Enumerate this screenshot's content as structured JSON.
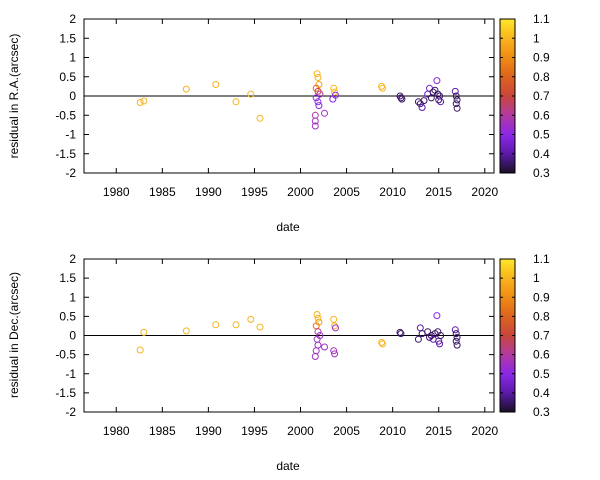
{
  "chart_data": [
    {
      "type": "scatter",
      "xlabel": "date",
      "ylabel": "residual in R.A.(arcsec)",
      "xlim": [
        1976.5,
        2021
      ],
      "ylim": [
        -2,
        2
      ],
      "x_ticks": [
        "1980",
        "1985",
        "1990",
        "1995",
        "2000",
        "2005",
        "2010",
        "2015",
        "2020"
      ],
      "y_ticks": [
        "2",
        "1.5",
        "1",
        "0.5",
        "0",
        "-0.5",
        "-1",
        "-1.5",
        "-2"
      ],
      "colorbar": {
        "ticks": [
          "1.1",
          "1",
          "0.9",
          "0.8",
          "0.7",
          "0.6",
          "0.5",
          "0.4",
          "0.3"
        ],
        "range": [
          0.3,
          1.1
        ]
      },
      "zero_line": true,
      "points": [
        {
          "x": 1982.6,
          "y": -0.17,
          "c": 1.0
        },
        {
          "x": 1983.0,
          "y": -0.13,
          "c": 1.0
        },
        {
          "x": 1987.6,
          "y": 0.18,
          "c": 1.0
        },
        {
          "x": 1990.8,
          "y": 0.3,
          "c": 1.0
        },
        {
          "x": 1993.0,
          "y": -0.15,
          "c": 1.0
        },
        {
          "x": 1994.6,
          "y": 0.05,
          "c": 1.0
        },
        {
          "x": 1995.6,
          "y": -0.58,
          "c": 1.0
        },
        {
          "x": 2001.8,
          "y": 0.58,
          "c": 1.0
        },
        {
          "x": 2001.9,
          "y": 0.48,
          "c": 1.0
        },
        {
          "x": 2002.0,
          "y": 0.3,
          "c": 0.95
        },
        {
          "x": 2001.7,
          "y": 0.2,
          "c": 0.8
        },
        {
          "x": 2001.9,
          "y": 0.12,
          "c": 0.7
        },
        {
          "x": 2002.1,
          "y": 0.05,
          "c": 0.6
        },
        {
          "x": 2001.7,
          "y": -0.05,
          "c": 0.5
        },
        {
          "x": 2001.9,
          "y": -0.15,
          "c": 0.5
        },
        {
          "x": 2002.0,
          "y": -0.25,
          "c": 0.5
        },
        {
          "x": 2001.6,
          "y": -0.5,
          "c": 0.6
        },
        {
          "x": 2001.6,
          "y": -0.65,
          "c": 0.55
        },
        {
          "x": 2001.6,
          "y": -0.78,
          "c": 0.55
        },
        {
          "x": 2002.6,
          "y": -0.45,
          "c": 0.55
        },
        {
          "x": 2003.6,
          "y": 0.2,
          "c": 1.0
        },
        {
          "x": 2003.7,
          "y": 0.1,
          "c": 1.0
        },
        {
          "x": 2003.8,
          "y": 0.02,
          "c": 0.5
        },
        {
          "x": 2003.5,
          "y": -0.08,
          "c": 0.5
        },
        {
          "x": 2008.8,
          "y": 0.25,
          "c": 1.0
        },
        {
          "x": 2008.9,
          "y": 0.2,
          "c": 1.0
        },
        {
          "x": 2010.8,
          "y": 0.0,
          "c": 0.35
        },
        {
          "x": 2010.9,
          "y": -0.05,
          "c": 0.35
        },
        {
          "x": 2011.0,
          "y": -0.08,
          "c": 0.35
        },
        {
          "x": 2012.8,
          "y": -0.15,
          "c": 0.35
        },
        {
          "x": 2013.0,
          "y": -0.2,
          "c": 0.35
        },
        {
          "x": 2013.2,
          "y": -0.3,
          "c": 0.4
        },
        {
          "x": 2013.4,
          "y": -0.12,
          "c": 0.35
        },
        {
          "x": 2013.8,
          "y": 0.05,
          "c": 0.45
        },
        {
          "x": 2014.0,
          "y": 0.2,
          "c": 0.45
        },
        {
          "x": 2014.2,
          "y": -0.05,
          "c": 0.35
        },
        {
          "x": 2014.4,
          "y": 0.1,
          "c": 0.35
        },
        {
          "x": 2014.6,
          "y": 0.15,
          "c": 0.35
        },
        {
          "x": 2014.8,
          "y": 0.4,
          "c": 0.5
        },
        {
          "x": 2014.9,
          "y": 0.05,
          "c": 0.35
        },
        {
          "x": 2015.0,
          "y": -0.1,
          "c": 0.35
        },
        {
          "x": 2015.1,
          "y": 0.0,
          "c": 0.35
        },
        {
          "x": 2015.2,
          "y": -0.15,
          "c": 0.4
        },
        {
          "x": 2016.8,
          "y": 0.12,
          "c": 0.4
        },
        {
          "x": 2016.9,
          "y": 0.0,
          "c": 0.35
        },
        {
          "x": 2017.0,
          "y": -0.1,
          "c": 0.35
        },
        {
          "x": 2016.9,
          "y": -0.2,
          "c": 0.35
        },
        {
          "x": 2017.0,
          "y": -0.32,
          "c": 0.35
        }
      ]
    },
    {
      "type": "scatter",
      "xlabel": "date",
      "ylabel": "residual in Dec.(arcsec)",
      "xlim": [
        1976.5,
        2021
      ],
      "ylim": [
        -2,
        2
      ],
      "x_ticks": [
        "1980",
        "1985",
        "1990",
        "1995",
        "2000",
        "2005",
        "2010",
        "2015",
        "2020"
      ],
      "y_ticks": [
        "2",
        "1.5",
        "1",
        "0.5",
        "0",
        "-0.5",
        "-1",
        "-1.5",
        "-2"
      ],
      "colorbar": {
        "ticks": [
          "1.1",
          "1",
          "0.9",
          "0.8",
          "0.7",
          "0.6",
          "0.5",
          "0.4",
          "0.3"
        ],
        "range": [
          0.3,
          1.1
        ]
      },
      "zero_line": true,
      "points": [
        {
          "x": 1982.6,
          "y": -0.38,
          "c": 1.0
        },
        {
          "x": 1983.0,
          "y": 0.08,
          "c": 1.0
        },
        {
          "x": 1987.6,
          "y": 0.12,
          "c": 1.0
        },
        {
          "x": 1990.8,
          "y": 0.28,
          "c": 1.0
        },
        {
          "x": 1993.0,
          "y": 0.28,
          "c": 1.0
        },
        {
          "x": 1994.6,
          "y": 0.42,
          "c": 1.0
        },
        {
          "x": 1995.6,
          "y": 0.22,
          "c": 1.0
        },
        {
          "x": 2001.8,
          "y": 0.55,
          "c": 1.0
        },
        {
          "x": 2001.9,
          "y": 0.45,
          "c": 1.0
        },
        {
          "x": 2002.0,
          "y": 0.35,
          "c": 0.95
        },
        {
          "x": 2001.7,
          "y": 0.25,
          "c": 0.85
        },
        {
          "x": 2001.9,
          "y": 0.1,
          "c": 0.6
        },
        {
          "x": 2002.1,
          "y": 0.0,
          "c": 0.55
        },
        {
          "x": 2001.8,
          "y": -0.1,
          "c": 0.55
        },
        {
          "x": 2001.9,
          "y": -0.25,
          "c": 0.55
        },
        {
          "x": 2001.7,
          "y": -0.4,
          "c": 0.55
        },
        {
          "x": 2001.6,
          "y": -0.55,
          "c": 0.55
        },
        {
          "x": 2002.6,
          "y": -0.3,
          "c": 0.55
        },
        {
          "x": 2003.6,
          "y": 0.42,
          "c": 1.0
        },
        {
          "x": 2003.7,
          "y": 0.25,
          "c": 1.0
        },
        {
          "x": 2003.8,
          "y": 0.2,
          "c": 0.55
        },
        {
          "x": 2003.6,
          "y": -0.4,
          "c": 0.55
        },
        {
          "x": 2003.7,
          "y": -0.48,
          "c": 0.55
        },
        {
          "x": 2008.8,
          "y": -0.18,
          "c": 1.0
        },
        {
          "x": 2008.9,
          "y": -0.22,
          "c": 1.0
        },
        {
          "x": 2010.8,
          "y": 0.08,
          "c": 0.35
        },
        {
          "x": 2010.9,
          "y": 0.05,
          "c": 0.35
        },
        {
          "x": 2012.8,
          "y": -0.1,
          "c": 0.35
        },
        {
          "x": 2013.0,
          "y": 0.2,
          "c": 0.4
        },
        {
          "x": 2013.2,
          "y": 0.05,
          "c": 0.35
        },
        {
          "x": 2013.8,
          "y": 0.1,
          "c": 0.35
        },
        {
          "x": 2014.0,
          "y": -0.05,
          "c": 0.35
        },
        {
          "x": 2014.2,
          "y": 0.0,
          "c": 0.35
        },
        {
          "x": 2014.4,
          "y": -0.1,
          "c": 0.4
        },
        {
          "x": 2014.6,
          "y": 0.05,
          "c": 0.35
        },
        {
          "x": 2014.8,
          "y": 0.52,
          "c": 0.5
        },
        {
          "x": 2014.9,
          "y": 0.1,
          "c": 0.35
        },
        {
          "x": 2015.0,
          "y": -0.15,
          "c": 0.4
        },
        {
          "x": 2015.1,
          "y": -0.22,
          "c": 0.4
        },
        {
          "x": 2015.2,
          "y": 0.0,
          "c": 0.35
        },
        {
          "x": 2016.8,
          "y": 0.15,
          "c": 0.4
        },
        {
          "x": 2016.9,
          "y": 0.05,
          "c": 0.35
        },
        {
          "x": 2017.0,
          "y": -0.05,
          "c": 0.35
        },
        {
          "x": 2016.9,
          "y": -0.15,
          "c": 0.35
        },
        {
          "x": 2017.0,
          "y": -0.25,
          "c": 0.35
        }
      ]
    }
  ]
}
